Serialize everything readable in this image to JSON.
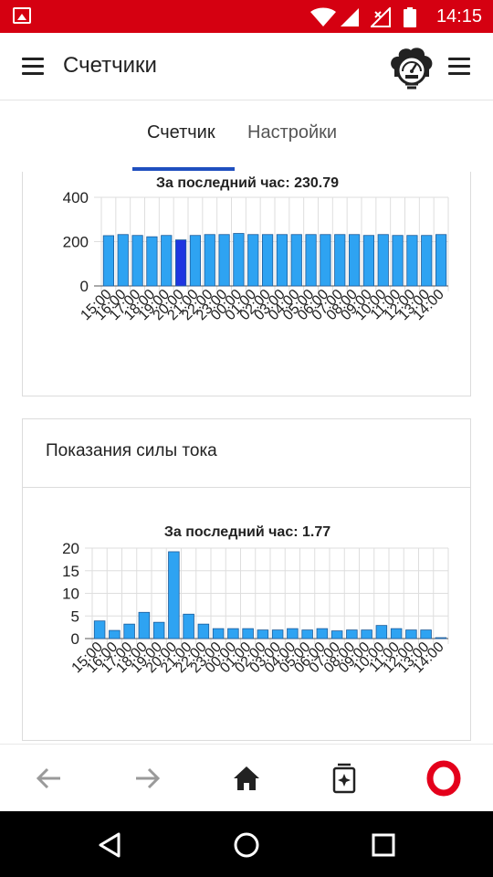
{
  "status_bar": {
    "time": "14:15",
    "icons": [
      "image-icon",
      "wifi-icon",
      "cellular-signal-icon",
      "no-sim-icon",
      "battery-icon"
    ]
  },
  "app_bar": {
    "title": "Счетчики",
    "left_icon": "hamburger-menu-icon",
    "logo_icon": "meter-gauge-logo-icon",
    "right_icon": "hamburger-menu-icon"
  },
  "tabs": [
    {
      "label": "Счетчик",
      "active": true
    },
    {
      "label": "Настройки",
      "active": false
    }
  ],
  "colors": {
    "status_bar": "#d50011",
    "tab_indicator": "#1f4fbf",
    "bar": "#2ea3f2",
    "bar_highlight": "#1f35e0",
    "opera": "#e4001b"
  },
  "voltage_card": {},
  "current_card": {
    "header": "Показания силы тока"
  },
  "chart_data": [
    {
      "type": "bar",
      "title": "За последний час: 230.79",
      "categories": [
        "15:00",
        "16:00",
        "17:00",
        "18:00",
        "19:00",
        "20:00",
        "21:00",
        "22:00",
        "23:00",
        "00:00",
        "01:00",
        "02:00",
        "03:00",
        "04:00",
        "05:00",
        "06:00",
        "07:00",
        "08:00",
        "09:00",
        "10:00",
        "11:00",
        "12:00",
        "13:00",
        "14:00"
      ],
      "values": [
        227,
        232,
        228,
        222,
        228,
        208,
        228,
        232,
        232,
        237,
        232,
        232,
        232,
        232,
        232,
        232,
        232,
        232,
        228,
        232,
        228,
        228,
        228,
        232
      ],
      "highlight_index": 5,
      "yticks": [
        0,
        200,
        400
      ],
      "ylim": [
        0,
        400
      ],
      "grid": true
    },
    {
      "type": "bar",
      "title": "За последний час: 1.77",
      "categories": [
        "15:00",
        "16:00",
        "17:00",
        "18:00",
        "19:00",
        "20:00",
        "21:00",
        "22:00",
        "23:00",
        "00:00",
        "01:00",
        "02:00",
        "03:00",
        "04:00",
        "05:00",
        "06:00",
        "07:00",
        "08:00",
        "09:00",
        "10:00",
        "11:00",
        "12:00",
        "13:00",
        "14:00"
      ],
      "values": [
        3.9,
        1.8,
        3.2,
        5.8,
        3.6,
        19.2,
        5.4,
        3.2,
        2.2,
        2.2,
        2.2,
        1.9,
        1.9,
        2.2,
        1.9,
        2.2,
        1.7,
        1.9,
        1.9,
        2.9,
        2.2,
        1.9,
        1.9,
        0.1
      ],
      "yticks": [
        0,
        5,
        10,
        15,
        20
      ],
      "ylim": [
        0,
        20
      ],
      "grid": true
    }
  ],
  "browser_bar": {
    "icons": [
      "back-arrow-icon",
      "forward-arrow-icon",
      "home-icon",
      "my-flow-icon",
      "opera-logo-icon"
    ]
  },
  "nav_bar": {
    "icons": [
      "back-triangle-icon",
      "home-circle-icon",
      "recents-square-icon"
    ]
  }
}
